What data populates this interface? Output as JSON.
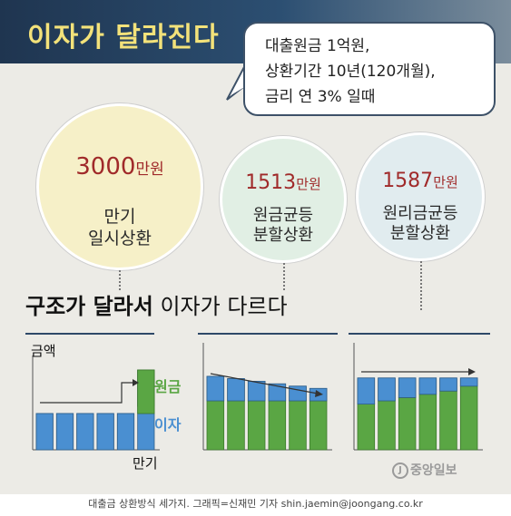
{
  "header": {
    "title": "이자가 달라진다"
  },
  "bubble": {
    "line1": "대출원금 1억원,",
    "line2": "상환기간 10년(120개월),",
    "line3": "금리 연 3% 일때"
  },
  "circles": [
    {
      "amount": "3000",
      "unit": "만원",
      "label1": "만기",
      "label2": "일시상환"
    },
    {
      "amount": "1513",
      "unit": "만원",
      "label1": "원금균등",
      "label2": "분할상환"
    },
    {
      "amount": "1587",
      "unit": "만원",
      "label1": "원리금균등",
      "label2": "분할상환"
    }
  ],
  "section": {
    "title_bold": "구조가 달라서",
    "title_rest": " 이자가 다르다"
  },
  "chart_data": [
    {
      "type": "bar",
      "title": "",
      "ylabel": "금액",
      "xlabel": "만기",
      "series": [
        {
          "name": "이자",
          "values": [
            1,
            1,
            1,
            1,
            1,
            1
          ]
        },
        {
          "name": "원금",
          "values": [
            0,
            0,
            0,
            0,
            0,
            1.2
          ]
        }
      ],
      "colors": {
        "이자": "#4a8fd1",
        "원금": "#5aa644"
      }
    },
    {
      "type": "bar",
      "title": "",
      "series": [
        {
          "name": "이자",
          "values": [
            0.75,
            0.68,
            0.6,
            0.52,
            0.45,
            0.38
          ]
        },
        {
          "name": "원금",
          "values": [
            1.5,
            1.5,
            1.5,
            1.5,
            1.5,
            1.5
          ]
        }
      ],
      "colors": {
        "이자": "#4a8fd1",
        "원금": "#5aa644"
      }
    },
    {
      "type": "bar",
      "title": "",
      "series": [
        {
          "name": "이자",
          "values": [
            0.8,
            0.7,
            0.6,
            0.5,
            0.4,
            0.25
          ]
        },
        {
          "name": "원금",
          "values": [
            1.4,
            1.5,
            1.6,
            1.7,
            1.8,
            1.95
          ]
        }
      ],
      "colors": {
        "이자": "#4a8fd1",
        "원금": "#5aa644"
      }
    }
  ],
  "legend": {
    "principal": "원금",
    "interest": "이자"
  },
  "logo": {
    "mark": "J",
    "text": "중앙일보"
  },
  "footer": {
    "caption": "대출금 상환방식 세가지. 그래픽=신재민 기자 shin.jaemin@joongang.co.kr"
  }
}
